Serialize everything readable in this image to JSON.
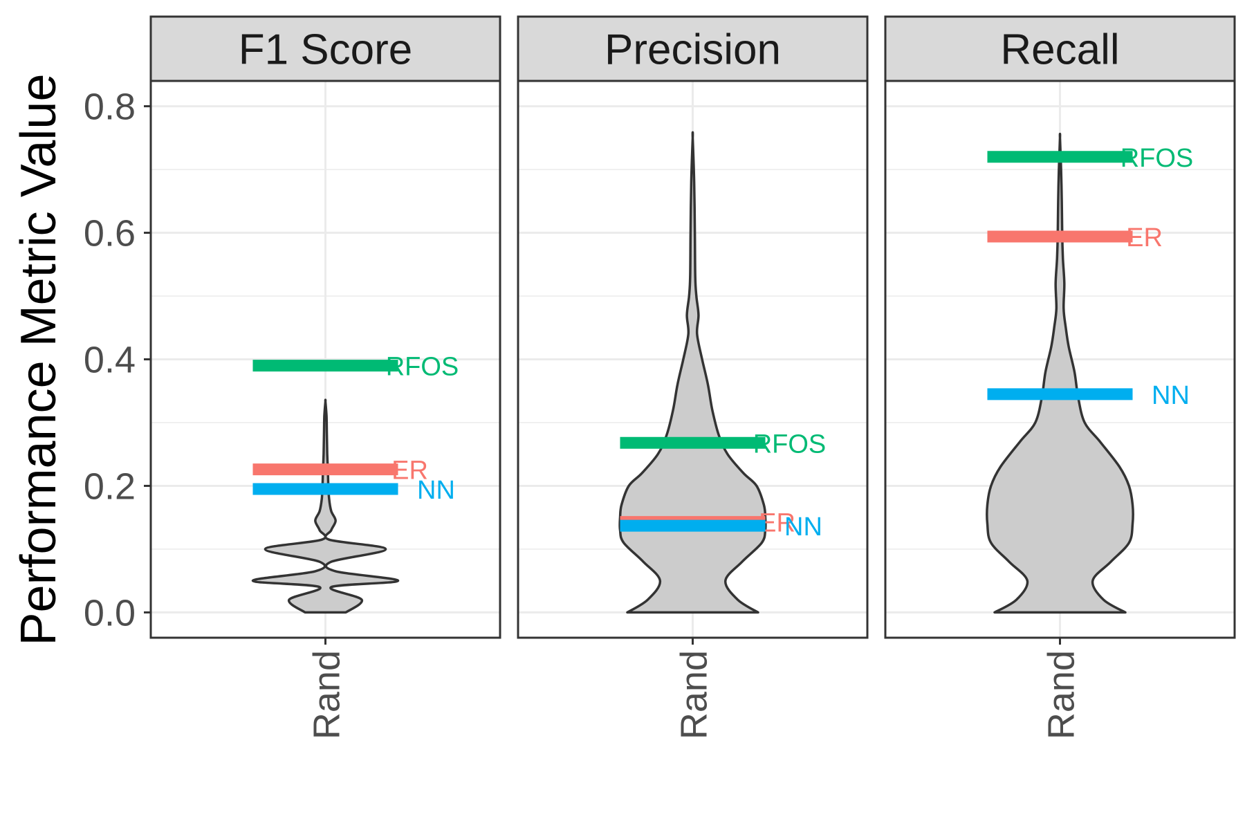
{
  "chart_data": {
    "type": "violin",
    "ylabel": "Performance Metric Value",
    "ylim": [
      -0.04,
      0.84
    ],
    "yticks": [
      0.0,
      0.2,
      0.4,
      0.6,
      0.8
    ],
    "ytick_labels": [
      "0.0",
      "0.2",
      "0.4",
      "0.6",
      "0.8"
    ],
    "category": "Rand",
    "grid": true,
    "violin_fill": "#cccccc",
    "violin_stroke": "#333333",
    "series_colors": {
      "RFOS": "#00BA74",
      "ER": "#F8766D",
      "NN": "#00AEEF"
    },
    "panels": [
      {
        "title": "F1 Score",
        "category": "Rand",
        "violin": {
          "y": [
            0.0,
            0.02,
            0.04,
            0.05,
            0.065,
            0.08,
            0.1,
            0.115,
            0.13,
            0.145,
            0.16,
            0.18,
            0.2,
            0.22,
            0.25,
            0.28,
            0.31,
            0.333
          ],
          "half_width": [
            0.28,
            0.5,
            0.08,
            1.0,
            0.14,
            0.08,
            0.83,
            0.05,
            0.08,
            0.14,
            0.08,
            0.05,
            0.04,
            0.035,
            0.025,
            0.02,
            0.015,
            0.0
          ]
        },
        "references": [
          {
            "name": "RFOS",
            "value": 0.39
          },
          {
            "name": "ER",
            "value": 0.226
          },
          {
            "name": "NN",
            "value": 0.195
          }
        ]
      },
      {
        "title": "Precision",
        "category": "Rand",
        "violin": {
          "y": [
            0.0,
            0.02,
            0.05,
            0.08,
            0.11,
            0.13,
            0.15,
            0.17,
            0.2,
            0.22,
            0.25,
            0.28,
            0.32,
            0.36,
            0.4,
            0.44,
            0.47,
            0.5,
            0.53,
            0.6,
            0.68,
            0.75
          ],
          "half_width": [
            0.9,
            0.62,
            0.45,
            0.68,
            0.95,
            1.0,
            1.0,
            0.98,
            0.88,
            0.7,
            0.48,
            0.36,
            0.27,
            0.21,
            0.13,
            0.06,
            0.08,
            0.05,
            0.035,
            0.03,
            0.02,
            0.0
          ]
        },
        "references": [
          {
            "name": "RFOS",
            "value": 0.268
          },
          {
            "name": "ER",
            "value": 0.143
          },
          {
            "name": "NN",
            "value": 0.137
          }
        ]
      },
      {
        "title": "Recall",
        "category": "Rand",
        "violin": {
          "y": [
            0.0,
            0.02,
            0.05,
            0.08,
            0.11,
            0.14,
            0.17,
            0.2,
            0.23,
            0.27,
            0.3,
            0.34,
            0.38,
            0.42,
            0.45,
            0.48,
            0.52,
            0.56,
            0.6,
            0.65,
            0.7,
            0.75
          ],
          "half_width": [
            0.9,
            0.6,
            0.45,
            0.7,
            0.95,
            1.0,
            1.0,
            0.95,
            0.82,
            0.55,
            0.34,
            0.25,
            0.2,
            0.12,
            0.08,
            0.05,
            0.06,
            0.04,
            0.03,
            0.025,
            0.015,
            0.0
          ]
        },
        "references": [
          {
            "name": "RFOS",
            "value": 0.72
          },
          {
            "name": "ER",
            "value": 0.594
          },
          {
            "name": "NN",
            "value": 0.345
          }
        ]
      }
    ]
  }
}
